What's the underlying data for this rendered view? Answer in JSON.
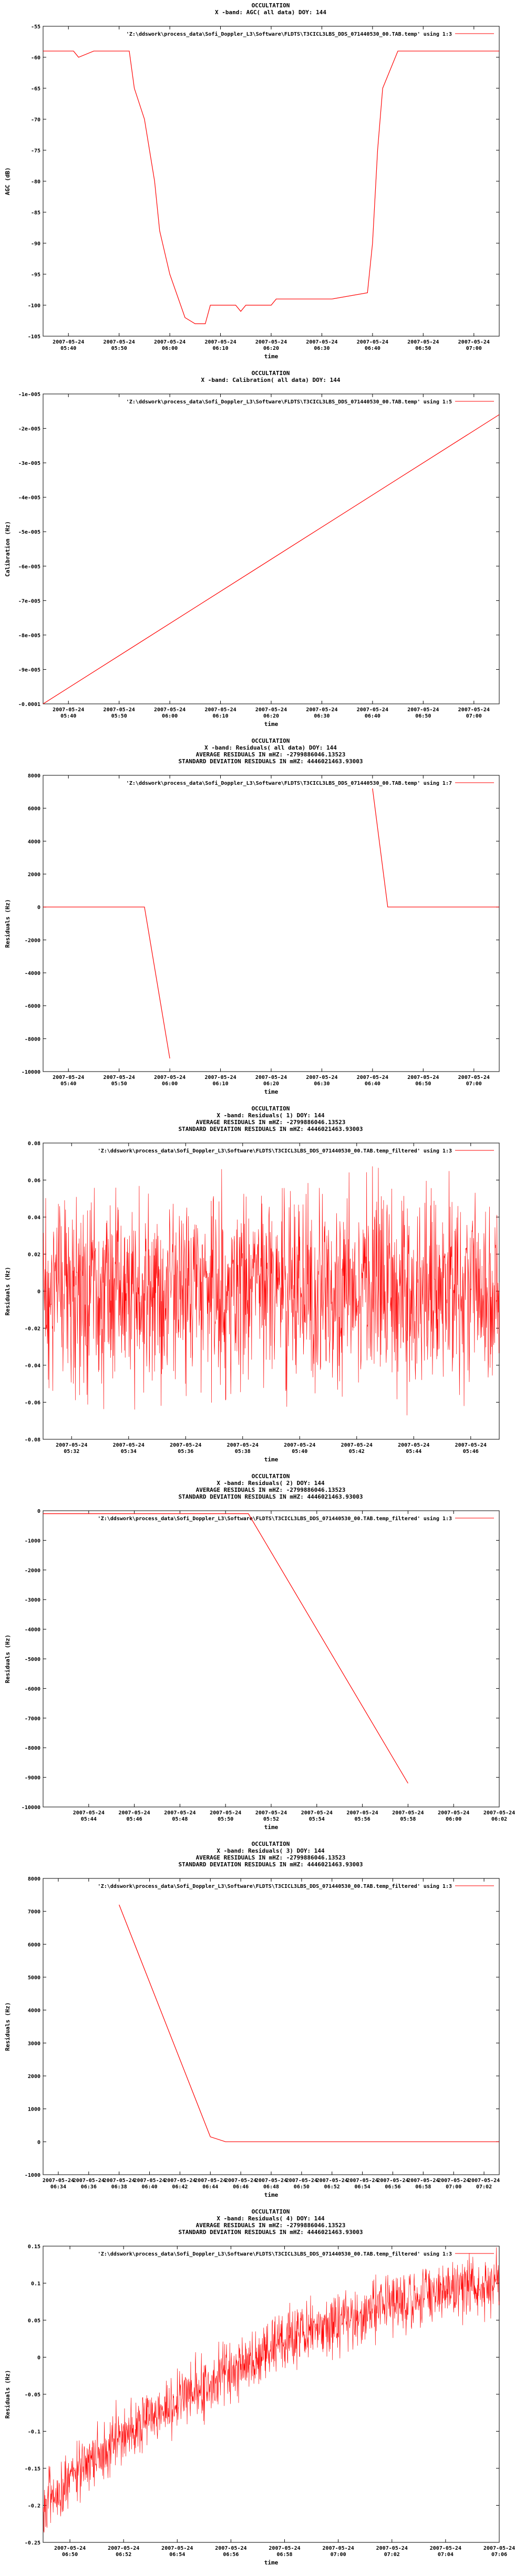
{
  "chart_data": [
    {
      "type": "line",
      "title": "OCCULTATION",
      "subtitle": "X -band: AGC( all data) DOY: 144",
      "stats": [],
      "legend": "'Z:\\ddswork\\process_data\\Sofi_Doppler_L3\\Software\\FLDTS\\T3CICL3LBS_DDS_071440530_00.TAB.temp' using 1:3",
      "xlabel": "time",
      "ylabel": "AGC (dB)",
      "xlim": [
        "2007-05-24 05:35",
        "2007-05-24 07:05"
      ],
      "xticks": [
        [
          "2007-05-24",
          "05:40"
        ],
        [
          "2007-05-24",
          "05:50"
        ],
        [
          "2007-05-24",
          "06:00"
        ],
        [
          "2007-05-24",
          "06:10"
        ],
        [
          "2007-05-24",
          "06:20"
        ],
        [
          "2007-05-24",
          "06:30"
        ],
        [
          "2007-05-24",
          "06:40"
        ],
        [
          "2007-05-24",
          "06:50"
        ],
        [
          "2007-05-24",
          "07:00"
        ]
      ],
      "ylim": [
        -105,
        -55
      ],
      "yticks": [
        "-105",
        "-100",
        "-95",
        "-90",
        "-85",
        "-80",
        "-75",
        "-70",
        "-65",
        "-60",
        "-55"
      ],
      "series": [
        {
          "color": "#ff0000",
          "x": [
            "05:35",
            "05:41",
            "05:42",
            "05:45",
            "05:52",
            "05:53",
            "05:55",
            "05:56",
            "05:57",
            "05:58",
            "06:00",
            "06:03",
            "06:05",
            "06:06",
            "06:07",
            "06:08",
            "06:13",
            "06:14",
            "06:15",
            "06:20",
            "06:21",
            "06:30",
            "06:32",
            "06:39",
            "06:40",
            "06:41",
            "06:42",
            "06:45",
            "06:50",
            "07:00",
            "07:05"
          ],
          "y": [
            -59,
            -59,
            -60,
            -59,
            -59,
            -65,
            -70,
            -75,
            -80,
            -88,
            -95,
            -102,
            -103,
            -103,
            -103,
            -100,
            -100,
            -101,
            -100,
            -100,
            -99,
            -99,
            -99,
            -98,
            -90,
            -75,
            -65,
            -59,
            -59,
            -59,
            -59
          ]
        }
      ]
    },
    {
      "type": "line",
      "title": "OCCULTATION",
      "subtitle": "X -band: Calibration( all data) DOY: 144",
      "stats": [],
      "legend": "'Z:\\ddswork\\process_data\\Sofi_Doppler_L3\\Software\\FLDTS\\T3CICL3LBS_DDS_071440530_00.TAB.temp' using 1:5",
      "xlabel": "time",
      "ylabel": "Calibration (Hz)",
      "xlim": [
        "2007-05-24 05:35",
        "2007-05-24 07:05"
      ],
      "xticks": [
        [
          "2007-05-24",
          "05:40"
        ],
        [
          "2007-05-24",
          "05:50"
        ],
        [
          "2007-05-24",
          "06:00"
        ],
        [
          "2007-05-24",
          "06:10"
        ],
        [
          "2007-05-24",
          "06:20"
        ],
        [
          "2007-05-24",
          "06:30"
        ],
        [
          "2007-05-24",
          "06:40"
        ],
        [
          "2007-05-24",
          "06:50"
        ],
        [
          "2007-05-24",
          "07:00"
        ]
      ],
      "ylim": [
        -0.0001,
        -1e-05
      ],
      "yticks": [
        "-0.0001",
        "-9e-005",
        "-8e-005",
        "-7e-005",
        "-6e-005",
        "-5e-005",
        "-4e-005",
        "-3e-005",
        "-2e-005",
        "-1e-005"
      ],
      "series": [
        {
          "color": "#ff0000",
          "x": [
            "05:35",
            "07:05"
          ],
          "y": [
            -0.0001,
            -1.6e-05
          ]
        }
      ]
    },
    {
      "type": "line",
      "title": "OCCULTATION",
      "subtitle": "X -band: Residuals( all data) DOY: 144",
      "stats": [
        "AVERAGE RESIDUALS IN mHZ: -2799886046.13523",
        "STANDARD DEVIATION RESIDUALS IN mHZ: 4446021463.93003"
      ],
      "legend": "'Z:\\ddswork\\process_data\\Sofi_Doppler_L3\\Software\\FLDTS\\T3CICL3LBS_DDS_071440530_00.TAB.temp' using 1:7",
      "xlabel": "time",
      "ylabel": "Residuals (Hz)",
      "xlim": [
        "2007-05-24 05:35",
        "2007-05-24 07:05"
      ],
      "xticks": [
        [
          "2007-05-24",
          "05:40"
        ],
        [
          "2007-05-24",
          "05:50"
        ],
        [
          "2007-05-24",
          "06:00"
        ],
        [
          "2007-05-24",
          "06:10"
        ],
        [
          "2007-05-24",
          "06:20"
        ],
        [
          "2007-05-24",
          "06:30"
        ],
        [
          "2007-05-24",
          "06:40"
        ],
        [
          "2007-05-24",
          "06:50"
        ],
        [
          "2007-05-24",
          "07:00"
        ]
      ],
      "ylim": [
        -10000,
        8000
      ],
      "yticks": [
        "-10000",
        "-8000",
        "-6000",
        "-4000",
        "-2000",
        "0",
        "2000",
        "4000",
        "6000",
        "8000"
      ],
      "series": [
        {
          "color": "#ff0000",
          "x": [
            "05:35",
            "05:55",
            "06:00"
          ],
          "y": [
            0,
            0,
            -9200
          ]
        },
        {
          "color": "#ff0000",
          "x": [
            "06:40",
            "06:43",
            "07:05"
          ],
          "y": [
            7200,
            0,
            0
          ]
        }
      ]
    },
    {
      "type": "line",
      "title": "OCCULTATION",
      "subtitle": "X -band: Residuals( 1) DOY: 144",
      "stats": [
        "AVERAGE RESIDUALS IN mHZ: -2799886046.13523",
        "STANDARD DEVIATION RESIDUALS IN mHZ: 4446021463.93003"
      ],
      "legend": "'Z:\\ddswork\\process_data\\Sofi_Doppler_L3\\Software\\FLDTS\\T3CICL3LBS_DDS_071440530_00.TAB.temp_filtered' using 1:3",
      "xlabel": "time",
      "ylabel": "Residuals (Hz)",
      "xlim": [
        "2007-05-24 05:31",
        "2007-05-24 05:47"
      ],
      "xticks": [
        [
          "2007-05-24",
          "05:32"
        ],
        [
          "2007-05-24",
          "05:34"
        ],
        [
          "2007-05-24",
          "05:36"
        ],
        [
          "2007-05-24",
          "05:38"
        ],
        [
          "2007-05-24",
          "05:40"
        ],
        [
          "2007-05-24",
          "05:42"
        ],
        [
          "2007-05-24",
          "05:44"
        ],
        [
          "2007-05-24",
          "05:46"
        ]
      ],
      "ylim": [
        -0.08,
        0.08
      ],
      "yticks": [
        "-0.08",
        "-0.06",
        "-0.04",
        "-0.02",
        "0",
        "0.02",
        "0.04",
        "0.06",
        "0.08"
      ],
      "series": [
        {
          "color": "#ff0000",
          "x": [
            "05:31",
            "05:47"
          ],
          "y": [
            0,
            0
          ],
          "noise": 0.025
        }
      ]
    },
    {
      "type": "line",
      "title": "OCCULTATION",
      "subtitle": "X -band: Residuals( 2) DOY: 144",
      "stats": [
        "AVERAGE RESIDUALS IN mHZ: -2799886046.13523",
        "STANDARD DEVIATION RESIDUALS IN mHZ: 4446021463.93003"
      ],
      "legend": "'Z:\\ddswork\\process_data\\Sofi_Doppler_L3\\Software\\FLDTS\\T3CICL3LBS_DDS_071440530_00.TAB.temp_filtered' using 1:3",
      "xlabel": "time",
      "ylabel": "Residuals (Hz)",
      "xlim": [
        "2007-05-24 05:42",
        "2007-05-24 06:02"
      ],
      "xticks": [
        [
          "2007-05-24",
          "05:44"
        ],
        [
          "2007-05-24",
          "05:46"
        ],
        [
          "2007-05-24",
          "05:48"
        ],
        [
          "2007-05-24",
          "05:50"
        ],
        [
          "2007-05-24",
          "05:52"
        ],
        [
          "2007-05-24",
          "05:54"
        ],
        [
          "2007-05-24",
          "05:56"
        ],
        [
          "2007-05-24",
          "05:58"
        ],
        [
          "2007-05-24",
          "06:00"
        ],
        [
          "2007-05-24",
          "06:02"
        ]
      ],
      "ylim": [
        -10000,
        0
      ],
      "yticks": [
        "-10000",
        "-9000",
        "-8000",
        "-7000",
        "-6000",
        "-5000",
        "-4000",
        "-3000",
        "-2000",
        "-1000",
        "0"
      ],
      "series": [
        {
          "color": "#ff0000",
          "x": [
            "05:42",
            "05:51",
            "05:58"
          ],
          "y": [
            -100,
            -100,
            -9200
          ]
        }
      ]
    },
    {
      "type": "line",
      "title": "OCCULTATION",
      "subtitle": "X -band: Residuals( 3) DOY: 144",
      "stats": [
        "AVERAGE RESIDUALS IN mHZ: -2799886046.13523",
        "STANDARD DEVIATION RESIDUALS IN mHZ: 4446021463.93003"
      ],
      "legend": "'Z:\\ddswork\\process_data\\Sofi_Doppler_L3\\Software\\FLDTS\\T3CICL3LBS_DDS_071440530_00.TAB.temp_filtered' using 1:3",
      "xlabel": "time",
      "ylabel": "Residuals (Hz)",
      "xlim": [
        "2007-05-24 06:33",
        "2007-05-24 07:03"
      ],
      "xticks": [
        [
          "2007-05-24",
          "06:34"
        ],
        [
          "2007-05-24",
          "06:36"
        ],
        [
          "2007-05-24",
          "06:38"
        ],
        [
          "2007-05-24",
          "06:40"
        ],
        [
          "2007-05-24",
          "06:42"
        ],
        [
          "2007-05-24",
          "06:44"
        ],
        [
          "2007-05-24",
          "06:46"
        ],
        [
          "2007-05-24",
          "06:48"
        ],
        [
          "2007-05-24",
          "06:50"
        ],
        [
          "2007-05-24",
          "06:52"
        ],
        [
          "2007-05-24",
          "06:54"
        ],
        [
          "2007-05-24",
          "06:56"
        ],
        [
          "2007-05-24",
          "06:58"
        ],
        [
          "2007-05-24",
          "07:00"
        ],
        [
          "2007-05-24",
          "07:02"
        ]
      ],
      "ylim": [
        -1000,
        8000
      ],
      "yticks": [
        "-1000",
        "0",
        "1000",
        "2000",
        "3000",
        "4000",
        "5000",
        "6000",
        "7000",
        "8000"
      ],
      "series": [
        {
          "color": "#ff0000",
          "x": [
            "06:38",
            "06:44",
            "06:45",
            "07:03"
          ],
          "y": [
            7200,
            150,
            0,
            0
          ]
        }
      ]
    },
    {
      "type": "line",
      "title": "OCCULTATION",
      "subtitle": "X -band: Residuals( 4) DOY: 144",
      "stats": [
        "AVERAGE RESIDUALS IN mHZ: -2799886046.13523",
        "STANDARD DEVIATION RESIDUALS IN mHZ: 4446021463.93003"
      ],
      "legend": "'Z:\\ddswork\\process_data\\Sofi_Doppler_L3\\Software\\FLDTS\\T3CICL3LBS_DDS_071440530_00.TAB.temp_filtered' using 1:3",
      "xlabel": "time",
      "ylabel": "Residuals (Hz)",
      "xlim": [
        "2007-05-24 06:49",
        "2007-05-24 07:06"
      ],
      "xticks": [
        [
          "2007-05-24",
          "06:50"
        ],
        [
          "2007-05-24",
          "06:52"
        ],
        [
          "2007-05-24",
          "06:54"
        ],
        [
          "2007-05-24",
          "06:56"
        ],
        [
          "2007-05-24",
          "06:58"
        ],
        [
          "2007-05-24",
          "07:00"
        ],
        [
          "2007-05-24",
          "07:02"
        ],
        [
          "2007-05-24",
          "07:04"
        ],
        [
          "2007-05-24",
          "07:06"
        ]
      ],
      "ylim": [
        -0.25,
        0.15
      ],
      "yticks": [
        "-0.25",
        "-0.2",
        "-0.15",
        "-0.1",
        "-0.05",
        "0",
        "0.05",
        "0.1",
        "0.15"
      ],
      "series": [
        {
          "color": "#ff0000",
          "x": [
            "06:49",
            "06:52",
            "06:55",
            "06:58",
            "07:01",
            "07:04",
            "07:06"
          ],
          "y": [
            -0.2,
            -0.1,
            -0.04,
            0.02,
            0.06,
            0.09,
            0.1
          ],
          "noise": 0.02
        }
      ]
    }
  ]
}
